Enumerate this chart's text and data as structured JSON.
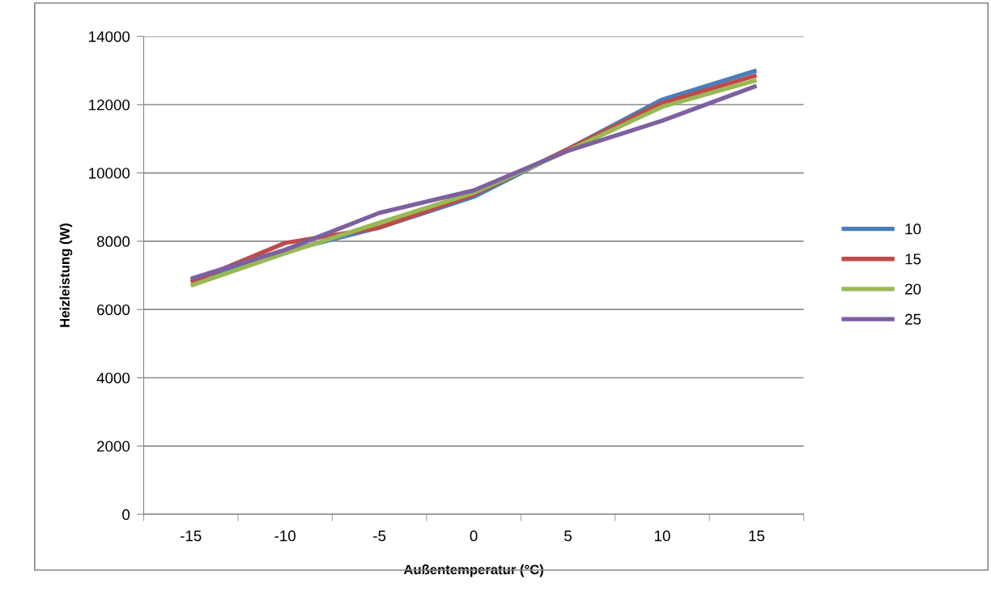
{
  "chart_data": {
    "type": "line",
    "xlabel": "Außentemperatur (°C)",
    "ylabel": "Heizleistung (W)",
    "categories": [
      "-15",
      "-10",
      "-5",
      "0",
      "5",
      "10",
      "15"
    ],
    "series": [
      {
        "name": "10",
        "color": "#4a7ebb",
        "values": [
          6850,
          7700,
          8400,
          9300,
          10700,
          12150,
          13000
        ]
      },
      {
        "name": "15",
        "color": "#be4b48",
        "values": [
          6800,
          7950,
          8400,
          9370,
          10700,
          12050,
          12860
        ]
      },
      {
        "name": "20",
        "color": "#98b954",
        "values": [
          6700,
          7650,
          8540,
          9420,
          10650,
          11940,
          12720
        ]
      },
      {
        "name": "25",
        "color": "#7d60a0",
        "values": [
          6900,
          7750,
          8830,
          9490,
          10650,
          11530,
          12550
        ]
      }
    ],
    "ylim": [
      0,
      14000
    ],
    "yticks": [
      0,
      2000,
      4000,
      6000,
      8000,
      10000,
      12000,
      14000
    ],
    "grid": "y",
    "legend": "right",
    "marker": "none",
    "line_style": "solid"
  }
}
